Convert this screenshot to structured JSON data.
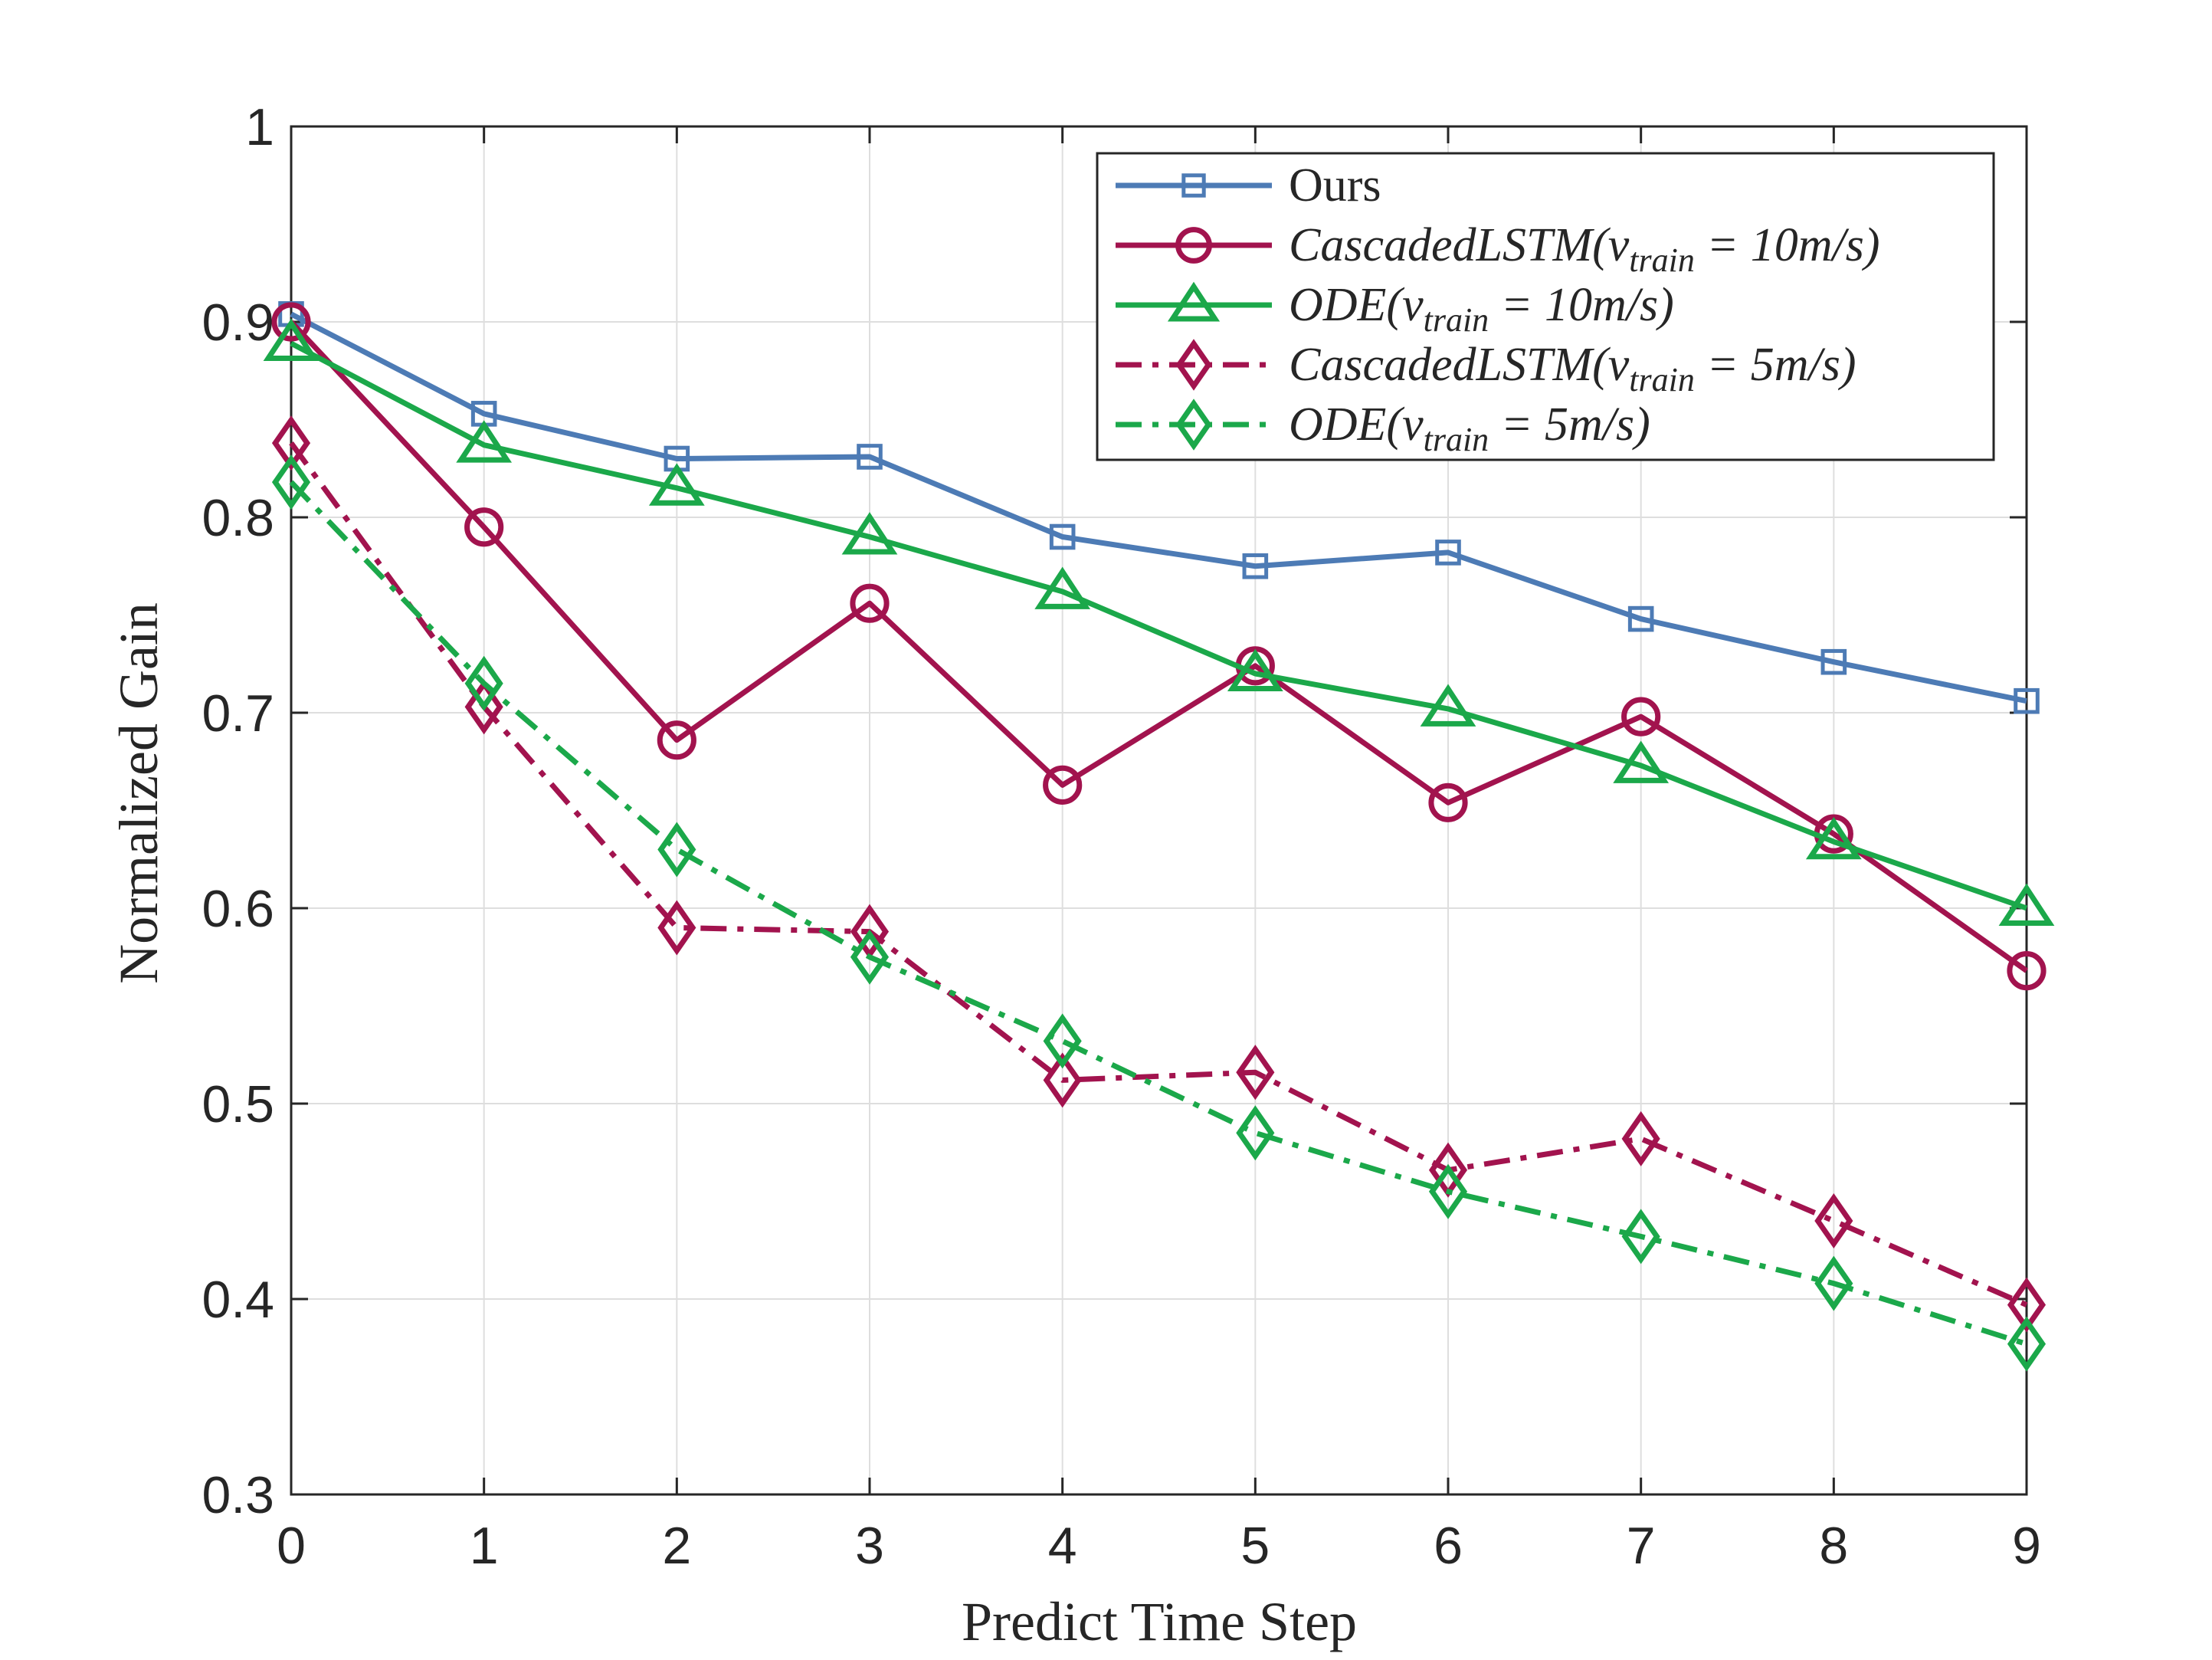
{
  "chart_data": {
    "type": "line",
    "title": "",
    "xlabel": "Predict Time Step",
    "ylabel": "Normalized Gain",
    "x": [
      0,
      1,
      2,
      3,
      4,
      5,
      6,
      7,
      8,
      9
    ],
    "xlim": [
      0,
      9
    ],
    "ylim": [
      0.3,
      1.0
    ],
    "xticks": [
      "0",
      "1",
      "2",
      "3",
      "4",
      "5",
      "6",
      "7",
      "8",
      "9"
    ],
    "yticks": [
      "0.3",
      "0.4",
      "0.5",
      "0.6",
      "0.7",
      "0.8",
      "0.9",
      "1"
    ],
    "grid": true,
    "legend_position": "top-right",
    "series": [
      {
        "name": "Ours",
        "label_main": "Ours",
        "label_sub": "",
        "label_tail": "",
        "italic": false,
        "color": "#4D7BB5",
        "marker": "square",
        "dash": "solid",
        "values": [
          0.904,
          0.853,
          0.83,
          0.831,
          0.79,
          0.775,
          0.782,
          0.748,
          0.726,
          0.706
        ]
      },
      {
        "name": "CascadedLSTM(v_train = 10m/s)",
        "label_main": "CascadedLSTM(v",
        "label_sub": "train",
        "label_tail": " = 10m/s)",
        "italic": true,
        "color": "#A2134E",
        "marker": "circle",
        "dash": "solid",
        "values": [
          0.9,
          0.795,
          0.686,
          0.756,
          0.663,
          0.724,
          0.654,
          0.698,
          0.638,
          0.568
        ]
      },
      {
        "name": "ODE(v_train = 10m/s)",
        "label_main": "ODE(v",
        "label_sub": "train",
        "label_tail": " = 10m/s)",
        "italic": true,
        "color": "#1BA84A",
        "marker": "triangle",
        "dash": "solid",
        "values": [
          0.889,
          0.837,
          0.815,
          0.79,
          0.762,
          0.72,
          0.702,
          0.673,
          0.634,
          0.6
        ]
      },
      {
        "name": "CascadedLSTM(v_train = 5m/s)",
        "label_main": "CascadedLSTM(v",
        "label_sub": "train",
        "label_tail": " = 5m/s)",
        "italic": true,
        "color": "#A2134E",
        "marker": "diamond",
        "dash": "dashdot",
        "values": [
          0.838,
          0.703,
          0.59,
          0.588,
          0.512,
          0.516,
          0.466,
          0.482,
          0.44,
          0.397
        ]
      },
      {
        "name": "ODE(v_train = 5m/s)",
        "label_main": "ODE(v",
        "label_sub": "train",
        "label_tail": " = 5m/s)",
        "italic": true,
        "color": "#1BA84A",
        "marker": "diamond",
        "dash": "dashdot",
        "values": [
          0.818,
          0.715,
          0.63,
          0.575,
          0.532,
          0.485,
          0.455,
          0.432,
          0.408,
          0.377
        ]
      }
    ]
  }
}
